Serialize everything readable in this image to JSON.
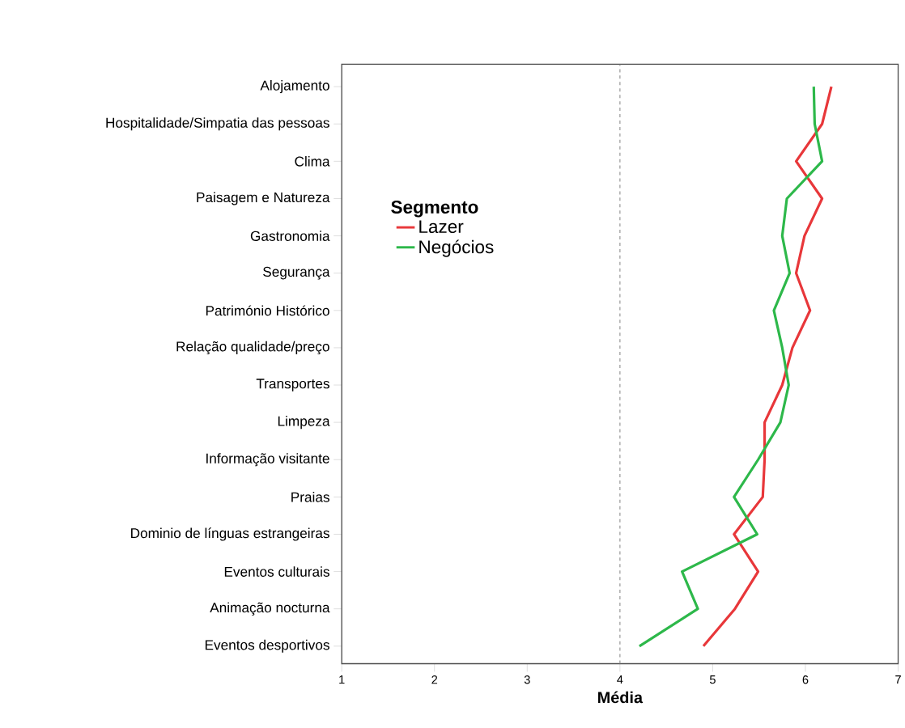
{
  "chart_data": {
    "type": "line",
    "orientation": "horizontal",
    "xlabel": "Média",
    "legend_title": "Segmento",
    "categories": [
      "Alojamento",
      "Hospitalidade/Simpatia das pessoas",
      "Clima",
      "Paisagem e Natureza",
      "Gastronomia",
      "Segurança",
      "Património Histórico",
      "Relação qualidade/preço",
      "Transportes",
      "Limpeza",
      "Informação visitante",
      "Praias",
      "Dominio de línguas estrangeiras",
      "Eventos culturais",
      "Animação nocturna",
      "Eventos desportivos"
    ],
    "series": [
      {
        "name": "Lazer",
        "color": "#e8373a",
        "values": [
          6.28,
          6.18,
          5.9,
          6.18,
          5.99,
          5.9,
          6.05,
          5.86,
          5.75,
          5.56,
          5.56,
          5.54,
          5.23,
          5.49,
          5.24,
          4.9
        ]
      },
      {
        "name": "Negócios",
        "color": "#2db84a",
        "values": [
          6.09,
          6.1,
          6.18,
          5.8,
          5.75,
          5.83,
          5.66,
          5.75,
          5.82,
          5.73,
          5.49,
          5.23,
          5.48,
          4.67,
          4.84,
          4.21
        ]
      }
    ],
    "xlim": [
      1,
      7
    ],
    "xticks": [
      1,
      2,
      3,
      4,
      5,
      6,
      7
    ],
    "ref_lines": [
      {
        "axis": "x",
        "value": 4,
        "color": "#a0a0a0",
        "line_style": "dashed"
      }
    ],
    "grid": false,
    "legend": "top left",
    "marker": "none",
    "line_style": "solid"
  }
}
